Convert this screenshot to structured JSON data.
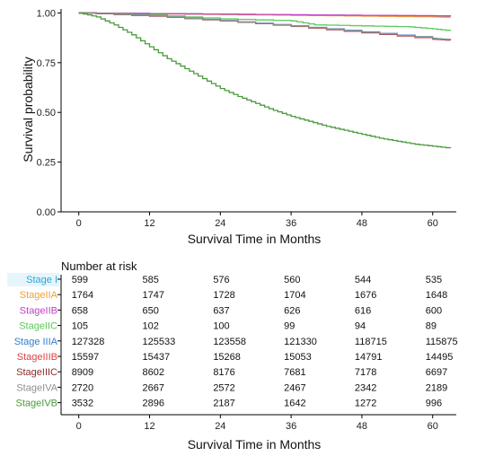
{
  "chart_data": {
    "type": "line",
    "title": "",
    "ylabel": "Survival probability",
    "xlabel": "Survival Time in Months",
    "xlim": [
      -3,
      64
    ],
    "ylim": [
      0,
      1.02
    ],
    "x_ticks": [
      0,
      12,
      24,
      36,
      48,
      60
    ],
    "y_ticks": [
      0.0,
      0.25,
      0.5,
      0.75,
      1.0
    ],
    "y_tick_labels": [
      "0.00",
      "0.25",
      "0.50",
      "0.75",
      "1.00"
    ],
    "grid": false,
    "series": [
      {
        "name": "Stage I",
        "color": "#29a8d8",
        "x": [
          0,
          12,
          24,
          36,
          48,
          60,
          63
        ],
        "y": [
          1.0,
          0.997,
          0.994,
          0.99,
          0.987,
          0.984,
          0.983
        ]
      },
      {
        "name": "StageIIA",
        "color": "#f0a030",
        "x": [
          0,
          12,
          24,
          36,
          48,
          60,
          63
        ],
        "y": [
          1.0,
          0.996,
          0.992,
          0.988,
          0.984,
          0.98,
          0.978
        ]
      },
      {
        "name": "StageIIB",
        "color": "#c040c0",
        "x": [
          0,
          12,
          24,
          36,
          48,
          60,
          63
        ],
        "y": [
          1.0,
          0.997,
          0.994,
          0.991,
          0.988,
          0.986,
          0.985
        ]
      },
      {
        "name": "StageIIC",
        "color": "#5cc85c",
        "x": [
          0,
          12,
          24,
          36,
          40,
          48,
          56,
          60,
          63
        ],
        "y": [
          1.0,
          0.99,
          0.97,
          0.96,
          0.94,
          0.935,
          0.93,
          0.92,
          0.91
        ]
      },
      {
        "name": "Stage IIIA",
        "color": "#2f7fc8",
        "x": [
          0,
          12,
          24,
          36,
          48,
          60,
          63
        ],
        "y": [
          1.0,
          0.985,
          0.962,
          0.935,
          0.905,
          0.872,
          0.865
        ]
      },
      {
        "name": "StageIIIB",
        "color": "#e04040",
        "x": [
          0,
          12,
          24,
          36,
          48,
          60,
          63
        ],
        "y": [
          1.0,
          0.984,
          0.96,
          0.932,
          0.9,
          0.868,
          0.862
        ]
      },
      {
        "name": "StageIIIC",
        "color": "#8b2a2a",
        "x": [
          0,
          12,
          24,
          36,
          48,
          60,
          63
        ],
        "y": [
          1.0,
          0.984,
          0.96,
          0.933,
          0.902,
          0.87,
          0.864
        ]
      },
      {
        "name": "StageIVA",
        "color": "#909090",
        "x": [
          0,
          12,
          24,
          36,
          48,
          60,
          63
        ],
        "y": [
          1.0,
          0.985,
          0.961,
          0.934,
          0.903,
          0.871,
          0.865
        ]
      },
      {
        "name": "StageIVB",
        "color": "#4a9a3c",
        "x": [
          0,
          3,
          6,
          9,
          12,
          15,
          18,
          21,
          24,
          27,
          30,
          33,
          36,
          39,
          42,
          45,
          48,
          51,
          54,
          57,
          60,
          63
        ],
        "y": [
          1.0,
          0.98,
          0.94,
          0.89,
          0.83,
          0.77,
          0.72,
          0.67,
          0.62,
          0.58,
          0.545,
          0.51,
          0.48,
          0.455,
          0.43,
          0.41,
          0.39,
          0.37,
          0.355,
          0.34,
          0.33,
          0.32
        ]
      }
    ]
  },
  "risk_table": {
    "title": "Number at risk",
    "xlabel": "Survival Time in Months",
    "x_ticks": [
      0,
      12,
      24,
      36,
      48,
      60
    ],
    "rows": [
      {
        "label": "Stage I",
        "color": "#29a8d8",
        "bg": "#e6f5fc",
        "values": [
          "599",
          "585",
          "576",
          "560",
          "544",
          "535"
        ]
      },
      {
        "label": "StageIIA",
        "color": "#f0a030",
        "bg": "",
        "values": [
          "1764",
          "1747",
          "1728",
          "1704",
          "1676",
          "1648"
        ]
      },
      {
        "label": "StageIIB",
        "color": "#c040c0",
        "bg": "",
        "values": [
          "658",
          "650",
          "637",
          "626",
          "616",
          "600"
        ]
      },
      {
        "label": "StageIIC",
        "color": "#5cc85c",
        "bg": "",
        "values": [
          "105",
          "102",
          "100",
          "99",
          "94",
          "89"
        ]
      },
      {
        "label": "Stage IIIA",
        "color": "#2f7fc8",
        "bg": "",
        "values": [
          "127328",
          "125533",
          "123558",
          "121330",
          "118715",
          "115875"
        ]
      },
      {
        "label": "StageIIIB",
        "color": "#e04040",
        "bg": "",
        "values": [
          "15597",
          "15437",
          "15268",
          "15053",
          "14791",
          "14495"
        ]
      },
      {
        "label": "StageIIIC",
        "color": "#8b2a2a",
        "bg": "",
        "values": [
          "8909",
          "8602",
          "8176",
          "7681",
          "7178",
          "6697"
        ]
      },
      {
        "label": "StageIVA",
        "color": "#909090",
        "bg": "",
        "values": [
          "2720",
          "2667",
          "2572",
          "2467",
          "2342",
          "2189"
        ]
      },
      {
        "label": "StageIVB",
        "color": "#4a9a3c",
        "bg": "",
        "values": [
          "3532",
          "2896",
          "2187",
          "1642",
          "1272",
          "996"
        ]
      }
    ]
  }
}
